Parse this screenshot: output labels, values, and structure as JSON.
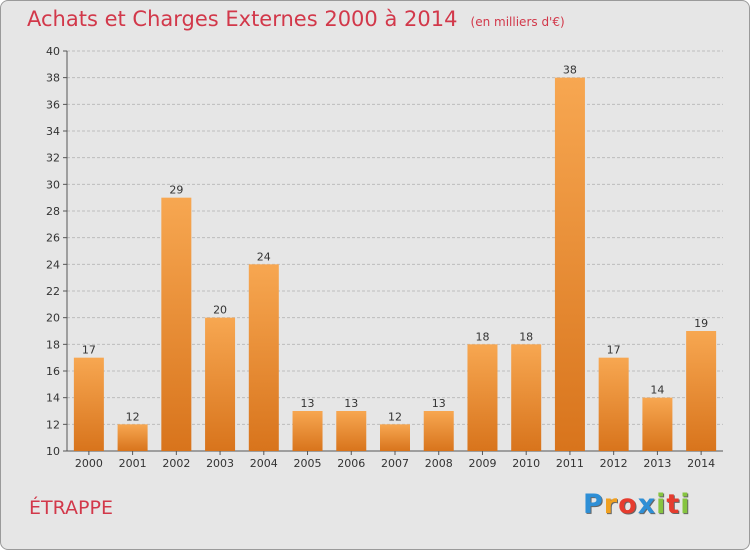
{
  "title": "Achats et Charges Externes 2000 à 2014",
  "subtitle": "(en milliers d'€)",
  "commune": "ÉTRAPPE",
  "logo": {
    "letters": [
      "P",
      "r",
      "o",
      "x",
      "i",
      "t",
      "i"
    ],
    "colors": [
      "#2e8fd6",
      "#f0a020",
      "#e63c2e",
      "#2e8fd6",
      "#86c440",
      "#e63c2e",
      "#86c440"
    ]
  },
  "colors": {
    "bar_light": "#f7a751",
    "bar_dark": "#d8741c",
    "title": "#d2384a",
    "grid": "#bdbdbd",
    "background": "#e6e6e6"
  },
  "chart_data": {
    "type": "bar",
    "categories": [
      "2000",
      "2001",
      "2002",
      "2003",
      "2004",
      "2005",
      "2006",
      "2007",
      "2008",
      "2009",
      "2010",
      "2011",
      "2012",
      "2013",
      "2014"
    ],
    "values": [
      17,
      12,
      29,
      20,
      24,
      13,
      13,
      12,
      13,
      18,
      18,
      38,
      17,
      14,
      19
    ],
    "ylim": [
      10,
      40
    ],
    "yticks": [
      10,
      12,
      14,
      16,
      18,
      20,
      22,
      24,
      26,
      28,
      30,
      32,
      34,
      36,
      38,
      40
    ],
    "grid": true,
    "data_labels": true
  }
}
